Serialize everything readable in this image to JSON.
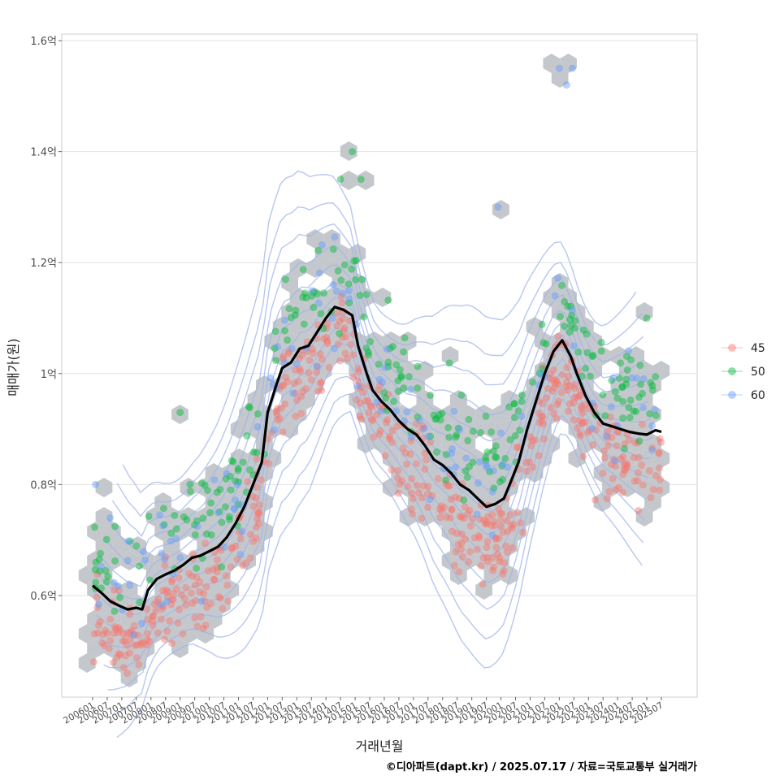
{
  "chart_data": {
    "type": "scatter",
    "xlabel": "거래년월",
    "ylabel": "매매가(원)",
    "caption": "©디아파트(dapt.kr) / 2025.07.17 / 자료=국토교통부 실거래가",
    "x_ticks": [
      "200601",
      "200607",
      "200701",
      "200707",
      "200801",
      "200807",
      "200901",
      "200907",
      "201001",
      "201007",
      "201101",
      "201107",
      "201201",
      "201207",
      "201301",
      "201307",
      "201401",
      "201407",
      "201501",
      "201507",
      "201601",
      "201607",
      "201701",
      "201707",
      "201801",
      "201807",
      "201901",
      "201907",
      "202001",
      "202007",
      "202101",
      "202107",
      "202201",
      "202207",
      "202301",
      "202307",
      "202401",
      "202407",
      "202501",
      "202507"
    ],
    "y_ticks": [
      {
        "value": 0.6,
        "label": "0.6억"
      },
      {
        "value": 0.8,
        "label": "0.8억"
      },
      {
        "value": 1.0,
        "label": "1억"
      },
      {
        "value": 1.2,
        "label": "1.2억"
      },
      {
        "value": 1.4,
        "label": "1.4억"
      },
      {
        "value": 1.6,
        "label": "1.6억"
      }
    ],
    "ylim": [
      0.42,
      1.62
    ],
    "xlim": [
      2005.3,
      2026.6
    ],
    "grid": true,
    "legend_position": "right",
    "series": [
      {
        "name": "45",
        "color": "#F8766D"
      },
      {
        "name": "50",
        "color": "#00BA38"
      },
      {
        "name": "60",
        "color": "#619CFF"
      }
    ],
    "trend_line": {
      "color": "#000000",
      "x": [
        2006.0,
        2006.3,
        2006.6,
        2006.9,
        2007.2,
        2007.5,
        2007.7,
        2007.9,
        2008.2,
        2008.5,
        2008.8,
        2009.1,
        2009.4,
        2009.7,
        2010.0,
        2010.3,
        2010.6,
        2010.9,
        2011.2,
        2011.5,
        2011.8,
        2012.0,
        2012.3,
        2012.5,
        2012.8,
        2013.1,
        2013.4,
        2013.7,
        2014.0,
        2014.3,
        2014.6,
        2014.9,
        2015.1,
        2015.4,
        2015.6,
        2015.9,
        2016.2,
        2016.5,
        2016.8,
        2017.1,
        2017.4,
        2017.7,
        2018.0,
        2018.3,
        2018.6,
        2018.9,
        2019.2,
        2019.5,
        2019.8,
        2020.1,
        2020.3,
        2020.6,
        2020.9,
        2021.2,
        2021.5,
        2021.8,
        2022.1,
        2022.4,
        2022.6,
        2022.9,
        2023.2,
        2023.5,
        2023.8,
        2024.1,
        2024.4,
        2024.7,
        2025.0,
        2025.3,
        2025.5
      ],
      "y": [
        0.618,
        0.605,
        0.59,
        0.582,
        0.575,
        0.578,
        0.575,
        0.61,
        0.63,
        0.638,
        0.645,
        0.655,
        0.668,
        0.672,
        0.68,
        0.688,
        0.705,
        0.73,
        0.76,
        0.8,
        0.84,
        0.93,
        0.98,
        1.01,
        1.02,
        1.045,
        1.05,
        1.075,
        1.1,
        1.12,
        1.115,
        1.105,
        1.05,
        1.0,
        0.97,
        0.95,
        0.935,
        0.915,
        0.9,
        0.89,
        0.87,
        0.845,
        0.835,
        0.82,
        0.8,
        0.79,
        0.775,
        0.76,
        0.765,
        0.775,
        0.8,
        0.84,
        0.9,
        0.95,
        1.0,
        1.04,
        1.06,
        1.03,
        1.0,
        0.96,
        0.93,
        0.91,
        0.905,
        0.9,
        0.895,
        0.892,
        0.89,
        0.898,
        0.895
      ]
    },
    "density_contour_color": "#9FB4EA",
    "hexbin_color": "#BFC3C8"
  }
}
